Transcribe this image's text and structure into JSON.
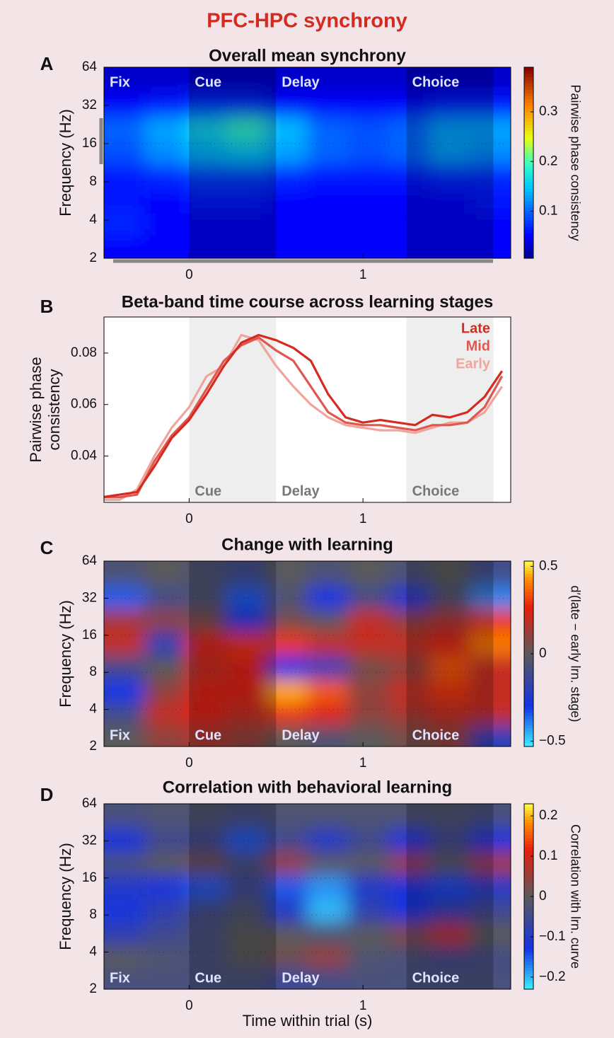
{
  "title": "PFC-HPC synchrony",
  "chart_data": [
    {
      "type": "heatmap",
      "panel": "A",
      "title": "Overall mean synchrony",
      "ylabel": "Frequency (Hz)",
      "colorbar_label": "Pairwise phase consistency",
      "colormap": "jet",
      "x_edges": [
        -0.49,
        -0.256,
        -0.022,
        0.212,
        0.446,
        0.68,
        0.914,
        1.148,
        1.382,
        1.616,
        1.85
      ],
      "y_edges": [
        2,
        3,
        4.5,
        7,
        11,
        17,
        26,
        40,
        64
      ],
      "z": [
        [
          0.05,
          0.05,
          0.05,
          0.05,
          0.05,
          0.05,
          0.05,
          0.05,
          0.05,
          0.05
        ],
        [
          0.07,
          0.05,
          0.05,
          0.05,
          0.05,
          0.05,
          0.05,
          0.05,
          0.05,
          0.05
        ],
        [
          0.06,
          0.05,
          0.06,
          0.06,
          0.05,
          0.05,
          0.05,
          0.05,
          0.05,
          0.06
        ],
        [
          0.06,
          0.07,
          0.08,
          0.08,
          0.07,
          0.06,
          0.06,
          0.06,
          0.07,
          0.07
        ],
        [
          0.09,
          0.12,
          0.14,
          0.15,
          0.13,
          0.1,
          0.09,
          0.1,
          0.13,
          0.12
        ],
        [
          0.1,
          0.13,
          0.16,
          0.19,
          0.14,
          0.1,
          0.09,
          0.1,
          0.13,
          0.13
        ],
        [
          0.05,
          0.06,
          0.07,
          0.07,
          0.05,
          0.05,
          0.05,
          0.05,
          0.06,
          0.06
        ],
        [
          0.03,
          0.03,
          0.03,
          0.03,
          0.03,
          0.03,
          0.03,
          0.03,
          0.03,
          0.03
        ]
      ],
      "clim": [
        0.005,
        0.39
      ],
      "cticks": [
        0.1,
        0.2,
        0.3
      ],
      "xlim": [
        -0.49,
        1.85
      ],
      "xticks": [
        0,
        1
      ],
      "ylim": [
        2,
        64
      ],
      "yticks": [
        2,
        4,
        8,
        16,
        32,
        64
      ],
      "log_y": true,
      "grid": true,
      "epoch_label_pos": "top",
      "epochs": [
        {
          "label": "Fix",
          "start": -0.49,
          "end": 0,
          "shaded": false
        },
        {
          "label": "Cue",
          "start": 0,
          "end": 0.5,
          "shaded": true
        },
        {
          "label": "Delay",
          "start": 0.5,
          "end": 1.25,
          "shaded": false
        },
        {
          "label": "Choice",
          "start": 1.25,
          "end": 1.75,
          "shaded": true
        }
      ]
    },
    {
      "type": "line",
      "panel": "B",
      "title": "Beta-band time course across learning stages",
      "ylabel": [
        "Pairwise phase",
        "consistency"
      ],
      "x": [
        -0.5,
        -0.4,
        -0.3,
        -0.2,
        -0.1,
        0,
        0.1,
        0.2,
        0.3,
        0.4,
        0.5,
        0.6,
        0.7,
        0.8,
        0.9,
        1.0,
        1.1,
        1.2,
        1.3,
        1.4,
        1.5,
        1.6,
        1.7,
        1.8
      ],
      "series": [
        {
          "name": "Early",
          "color": "#f0a59c",
          "values": [
            0.023,
            0.023,
            0.027,
            0.04,
            0.051,
            0.059,
            0.071,
            0.075,
            0.087,
            0.085,
            0.075,
            0.067,
            0.06,
            0.055,
            0.052,
            0.051,
            0.05,
            0.05,
            0.049,
            0.051,
            0.053,
            0.053,
            0.057,
            0.067
          ]
        },
        {
          "name": "Mid",
          "color": "#e0574f",
          "values": [
            0.024,
            0.024,
            0.025,
            0.038,
            0.048,
            0.055,
            0.066,
            0.077,
            0.083,
            0.086,
            0.081,
            0.077,
            0.067,
            0.057,
            0.053,
            0.052,
            0.052,
            0.051,
            0.05,
            0.052,
            0.052,
            0.053,
            0.059,
            0.071
          ]
        },
        {
          "name": "Late",
          "color": "#d42a1f",
          "values": [
            0.024,
            0.025,
            0.026,
            0.036,
            0.047,
            0.054,
            0.064,
            0.075,
            0.084,
            0.087,
            0.085,
            0.082,
            0.077,
            0.064,
            0.055,
            0.053,
            0.054,
            0.053,
            0.052,
            0.056,
            0.055,
            0.057,
            0.063,
            0.073
          ]
        }
      ],
      "xlim": [
        -0.49,
        1.85
      ],
      "xticks": [
        0,
        1
      ],
      "ylim": [
        0.022,
        0.094
      ],
      "yticks": [
        0.04,
        0.06,
        0.08
      ],
      "epoch_label_pos": "bottom",
      "epochs": [
        {
          "label": "Cue",
          "start": 0,
          "end": 0.5,
          "shaded": true
        },
        {
          "label": "Delay",
          "start": 0.5,
          "end": 1.25,
          "shaded": false
        },
        {
          "label": "Choice",
          "start": 1.25,
          "end": 1.75,
          "shaded": true
        }
      ]
    },
    {
      "type": "heatmap",
      "panel": "C",
      "title": "Change with learning",
      "ylabel": "Frequency (Hz)",
      "colorbar_label": "d′(late − early lrn. stage)",
      "colormap": "diverging",
      "x_edges": [
        -0.49,
        -0.256,
        -0.022,
        0.212,
        0.446,
        0.68,
        0.914,
        1.148,
        1.382,
        1.616,
        1.85
      ],
      "y_edges": [
        2,
        3,
        4.5,
        7,
        11,
        17,
        26,
        40,
        64
      ],
      "z": [
        [
          0.0,
          0.1,
          0.15,
          0.1,
          0.0,
          -0.05,
          0.0,
          0.05,
          0.1,
          -0.2
        ],
        [
          -0.1,
          0.2,
          0.25,
          0.2,
          0.3,
          0.25,
          0.1,
          0.15,
          0.2,
          0.2
        ],
        [
          -0.3,
          0.1,
          0.25,
          0.25,
          0.45,
          0.35,
          0.1,
          0.2,
          0.3,
          0.2
        ],
        [
          -0.1,
          0.0,
          0.2,
          0.25,
          -0.3,
          -0.2,
          0.05,
          0.1,
          0.35,
          0.2
        ],
        [
          0.2,
          -0.2,
          0.25,
          0.3,
          0.3,
          0.2,
          0.2,
          0.2,
          0.25,
          0.4
        ],
        [
          0.15,
          0.1,
          0.05,
          -0.3,
          0.05,
          0.0,
          0.2,
          0.1,
          0.15,
          0.3
        ],
        [
          -0.35,
          -0.1,
          -0.05,
          -0.35,
          -0.05,
          -0.3,
          -0.1,
          -0.25,
          -0.05,
          -0.4
        ],
        [
          -0.05,
          0.0,
          -0.05,
          -0.1,
          0.0,
          -0.05,
          0.0,
          -0.05,
          0.0,
          -0.1
        ]
      ],
      "clim": [
        -0.53,
        0.53
      ],
      "cticks": [
        {
          "value": -0.5,
          "label": "−0.5"
        },
        0,
        0.5
      ],
      "xlim": [
        -0.49,
        1.85
      ],
      "xticks": [
        0,
        1
      ],
      "ylim": [
        2,
        64
      ],
      "yticks": [
        2,
        4,
        8,
        16,
        32,
        64
      ],
      "log_y": true,
      "grid": true,
      "epoch_label_pos": "bottom",
      "epochs": [
        {
          "label": "Fix",
          "start": -0.49,
          "end": 0,
          "shaded": false
        },
        {
          "label": "Cue",
          "start": 0,
          "end": 0.5,
          "shaded": true
        },
        {
          "label": "Delay",
          "start": 0.5,
          "end": 1.25,
          "shaded": false
        },
        {
          "label": "Choice",
          "start": 1.25,
          "end": 1.75,
          "shaded": true
        }
      ]
    },
    {
      "type": "heatmap",
      "panel": "D",
      "title": "Correlation with behavioral learning",
      "ylabel": "Frequency (Hz)",
      "xlabel": "Time within trial (s)",
      "colorbar_label": "Correlation with lrn. curve",
      "colormap": "diverging",
      "x_edges": [
        -0.49,
        -0.256,
        -0.022,
        0.212,
        0.446,
        0.68,
        0.914,
        1.148,
        1.382,
        1.616,
        1.85
      ],
      "y_edges": [
        2,
        3,
        4.5,
        7,
        11,
        17,
        26,
        40,
        64
      ],
      "z": [
        [
          -0.03,
          -0.03,
          -0.03,
          -0.03,
          -0.05,
          -0.04,
          -0.03,
          -0.03,
          -0.03,
          -0.03
        ],
        [
          0.0,
          -0.02,
          -0.03,
          0.0,
          0.02,
          0.05,
          -0.02,
          -0.03,
          -0.05,
          -0.04
        ],
        [
          -0.08,
          -0.05,
          -0.03,
          0.0,
          0.0,
          -0.02,
          0.0,
          0.03,
          0.08,
          0.0
        ],
        [
          -0.12,
          -0.08,
          -0.04,
          -0.02,
          -0.1,
          -0.2,
          -0.08,
          -0.12,
          -0.08,
          -0.05
        ],
        [
          -0.1,
          -0.12,
          -0.15,
          -0.05,
          -0.15,
          -0.18,
          -0.1,
          -0.12,
          -0.14,
          -0.1
        ],
        [
          -0.03,
          0.0,
          0.02,
          -0.03,
          0.05,
          0.0,
          0.0,
          0.05,
          0.0,
          0.06
        ],
        [
          -0.12,
          -0.05,
          -0.05,
          -0.15,
          -0.05,
          -0.1,
          -0.05,
          -0.12,
          -0.05,
          -0.12
        ],
        [
          -0.03,
          -0.02,
          -0.02,
          -0.03,
          -0.02,
          -0.02,
          -0.02,
          -0.02,
          -0.02,
          -0.03
        ]
      ],
      "clim": [
        -0.23,
        0.23
      ],
      "cticks": [
        {
          "value": -0.2,
          "label": "−0.2"
        },
        {
          "value": -0.1,
          "label": "−0.1"
        },
        0,
        0.1,
        0.2
      ],
      "xlim": [
        -0.49,
        1.85
      ],
      "xticks": [
        0,
        1
      ],
      "ylim": [
        2,
        64
      ],
      "yticks": [
        2,
        4,
        8,
        16,
        32,
        64
      ],
      "log_y": true,
      "grid": true,
      "epoch_label_pos": "bottom",
      "epochs": [
        {
          "label": "Fix",
          "start": -0.49,
          "end": 0,
          "shaded": false
        },
        {
          "label": "Cue",
          "start": 0,
          "end": 0.5,
          "shaded": true
        },
        {
          "label": "Delay",
          "start": 0.5,
          "end": 1.25,
          "shaded": false
        },
        {
          "label": "Choice",
          "start": 1.25,
          "end": 1.75,
          "shaded": true
        }
      ]
    }
  ]
}
